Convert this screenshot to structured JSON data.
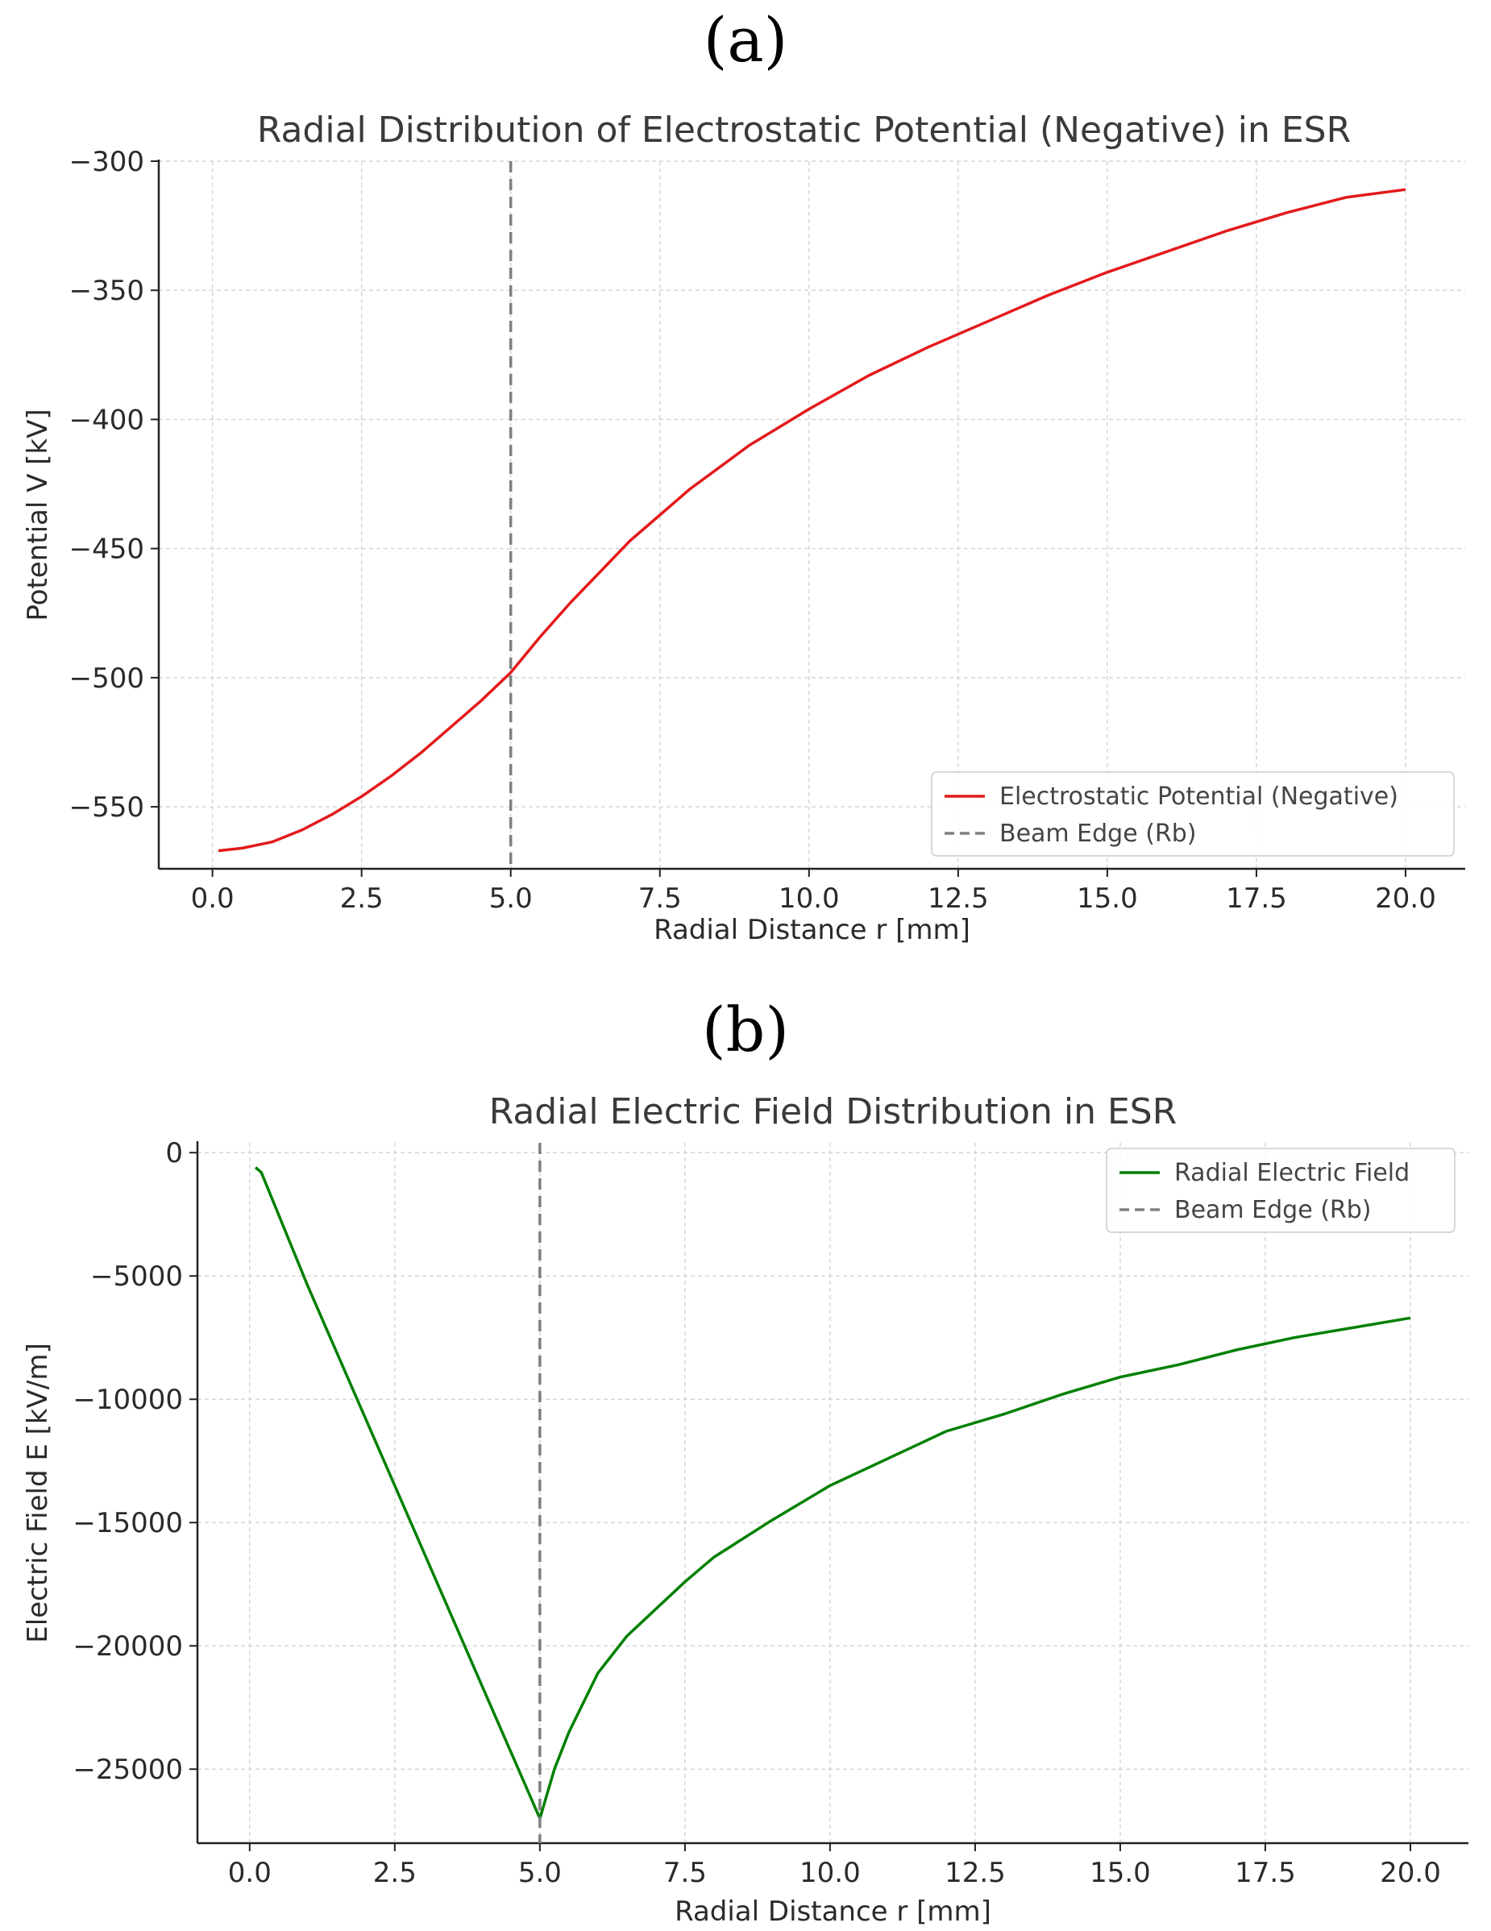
{
  "panels": {
    "a_label": "(a)",
    "b_label": "(b)"
  },
  "chart_data": [
    {
      "type": "line",
      "title": "Radial Distribution of Electrostatic Potential (Negative) in ESR",
      "xlabel": "Radial Distance r [mm]",
      "ylabel": "Potential V [kV]",
      "xlim": [
        -0.9,
        21.0
      ],
      "ylim": [
        -574,
        -300
      ],
      "xticks": [
        0.0,
        2.5,
        5.0,
        7.5,
        10.0,
        12.5,
        15.0,
        17.5,
        20.0
      ],
      "xtick_labels": [
        "0.0",
        "2.5",
        "5.0",
        "7.5",
        "10.0",
        "12.5",
        "15.0",
        "17.5",
        "20.0"
      ],
      "yticks": [
        -300,
        -350,
        -400,
        -450,
        -500,
        -550
      ],
      "ytick_labels": [
        "−300",
        "−350",
        "−400",
        "−450",
        "−500",
        "−550"
      ],
      "grid": true,
      "legend_position": "lower-right",
      "series": [
        {
          "name": "Electrostatic Potential (Negative)",
          "color": "#e31a1c",
          "style": "solid",
          "x": [
            0.1,
            0.5,
            1.0,
            1.5,
            2.0,
            2.5,
            3.0,
            3.5,
            4.0,
            4.5,
            5.0,
            5.5,
            6.0,
            6.5,
            7.0,
            7.5,
            8.0,
            9.0,
            10.0,
            11.0,
            12.0,
            13.0,
            14.0,
            15.0,
            16.0,
            17.0,
            18.0,
            19.0,
            20.0
          ],
          "y": [
            -567.0,
            -566.0,
            -563.6,
            -559.0,
            -553.0,
            -546.0,
            -538.0,
            -529.0,
            -519.0,
            -509.0,
            -498.0,
            -484.0,
            -471.0,
            -459.0,
            -447.0,
            -437.0,
            -427.0,
            -410.0,
            -396.0,
            -383.0,
            -372.0,
            -362.0,
            -352.0,
            -343.0,
            -335.0,
            -327.0,
            -320.0,
            -314.0,
            -311.0
          ]
        },
        {
          "name": "Beam Edge (Rb)",
          "color": "#808080",
          "style": "dashed",
          "vline_x": 5.0
        }
      ]
    },
    {
      "type": "line",
      "title": "Radial Electric Field Distribution in ESR",
      "xlabel": "Radial Distance r [mm]",
      "ylabel": "Electric Field E [kV/m]",
      "xlim": [
        -0.9,
        21.0
      ],
      "ylim": [
        -28000,
        400
      ],
      "xticks": [
        0.0,
        2.5,
        5.0,
        7.5,
        10.0,
        12.5,
        15.0,
        17.5,
        20.0
      ],
      "xtick_labels": [
        "0.0",
        "2.5",
        "5.0",
        "7.5",
        "10.0",
        "12.5",
        "15.0",
        "17.5",
        "20.0"
      ],
      "yticks": [
        0,
        -5000,
        -10000,
        -15000,
        -20000,
        -25000
      ],
      "ytick_labels": [
        "0",
        "−5000",
        "−10000",
        "−15000",
        "−20000",
        "−25000"
      ],
      "grid": true,
      "legend_position": "top-right",
      "series": [
        {
          "name": "Radial Electric Field",
          "color": "#008000",
          "style": "solid",
          "x": [
            0.1,
            0.2,
            1.0,
            2.0,
            3.0,
            4.0,
            5.0,
            5.25,
            5.5,
            6.0,
            6.5,
            7.0,
            7.5,
            8.0,
            9.0,
            10.0,
            11.0,
            12.0,
            13.0,
            14.0,
            15.0,
            16.0,
            17.0,
            18.0,
            19.0,
            20.0
          ],
          "y": [
            -600,
            -800,
            -5400,
            -10800,
            -16200,
            -21600,
            -27000,
            -25000,
            -23500,
            -21100,
            -19600,
            -18500,
            -17400,
            -16400,
            -14900,
            -13500,
            -12400,
            -11300,
            -10600,
            -9800,
            -9100,
            -8600,
            -8000,
            -7500,
            -7100,
            -6700
          ]
        },
        {
          "name": "Beam Edge (Rb)",
          "color": "#808080",
          "style": "dashed",
          "vline_x": 5.0
        }
      ]
    }
  ]
}
